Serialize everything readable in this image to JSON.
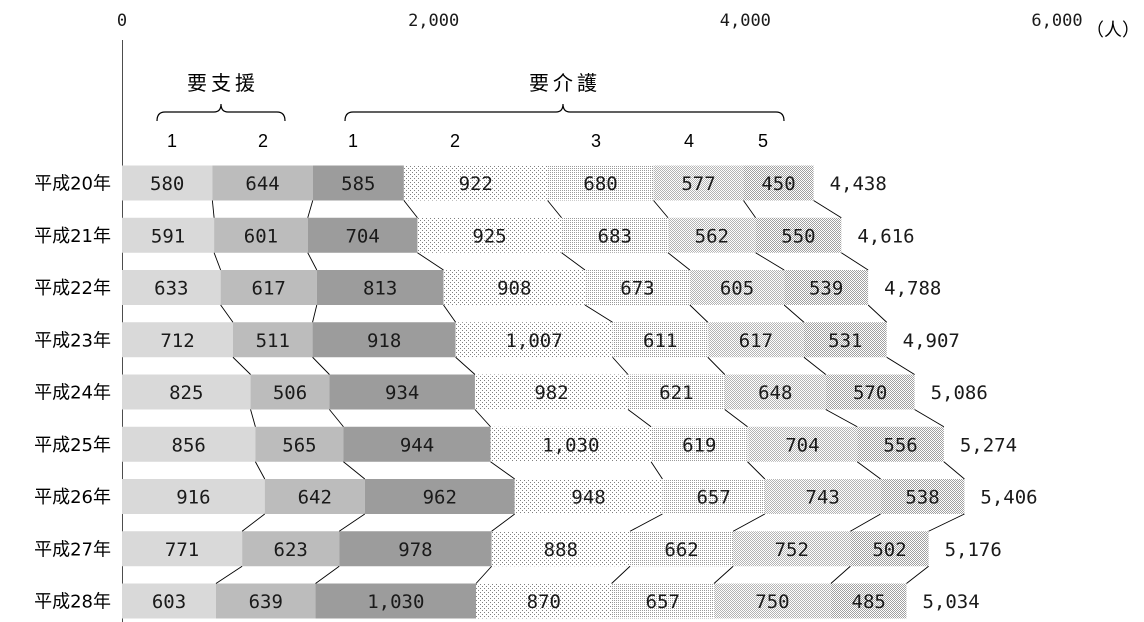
{
  "chart_data": {
    "type": "bar",
    "orientation": "horizontal",
    "stacked": true,
    "series_lines": true,
    "grid": false,
    "xlim": [
      0,
      6000
    ],
    "x_ticks": [
      {
        "value": 0,
        "label": "0"
      },
      {
        "value": 2000,
        "label": "2,000"
      },
      {
        "value": 4000,
        "label": "4,000"
      },
      {
        "value": 6000,
        "label": "6,000"
      }
    ],
    "x_unit": "（人）",
    "categories": [
      "平成20年",
      "平成21年",
      "平成22年",
      "平成23年",
      "平成24年",
      "平成25年",
      "平成26年",
      "平成27年",
      "平成28年"
    ],
    "groups": [
      {
        "label": "要支援",
        "series": [
          0,
          1
        ]
      },
      {
        "label": "要介護",
        "series": [
          2,
          3,
          4,
          5,
          6
        ]
      }
    ],
    "series": [
      {
        "name": "1",
        "color": "#d9d9d9",
        "patterned": false,
        "values": [
          580,
          591,
          633,
          712,
          825,
          856,
          916,
          771,
          603
        ],
        "labels": [
          "580",
          "591",
          "633",
          "712",
          "825",
          "856",
          "916",
          "771",
          "603"
        ]
      },
      {
        "name": "2",
        "color": "#bcbcbc",
        "patterned": false,
        "values": [
          644,
          601,
          617,
          511,
          506,
          565,
          642,
          623,
          639
        ],
        "labels": [
          "644",
          "601",
          "617",
          "511",
          "506",
          "565",
          "642",
          "623",
          "639"
        ]
      },
      {
        "name": "1",
        "color": "#9c9c9c",
        "patterned": false,
        "values": [
          585,
          704,
          813,
          918,
          934,
          944,
          962,
          978,
          1030
        ],
        "labels": [
          "585",
          "704",
          "813",
          "918",
          "934",
          "944",
          "962",
          "978",
          "1,030"
        ]
      },
      {
        "name": "2",
        "color": "#808080",
        "patterned": true,
        "values": [
          922,
          925,
          908,
          1007,
          982,
          1030,
          948,
          888,
          870
        ],
        "labels": [
          "922",
          "925",
          "908",
          "1,007",
          "982",
          "1,030",
          "948",
          "888",
          "870"
        ]
      },
      {
        "name": "3",
        "color": "#9a9a9a",
        "patterned": true,
        "values": [
          680,
          683,
          673,
          611,
          621,
          619,
          657,
          662,
          657
        ],
        "labels": [
          "680",
          "683",
          "673",
          "611",
          "621",
          "619",
          "657",
          "662",
          "657"
        ]
      },
      {
        "name": "4",
        "color": "#b4b4b4",
        "patterned": true,
        "values": [
          577,
          562,
          605,
          617,
          648,
          704,
          743,
          752,
          750
        ],
        "labels": [
          "577",
          "562",
          "605",
          "617",
          "648",
          "704",
          "743",
          "752",
          "750"
        ]
      },
      {
        "name": "5",
        "color": "#a0a0a0",
        "patterned": true,
        "values": [
          450,
          550,
          539,
          531,
          570,
          556,
          538,
          502,
          485
        ],
        "labels": [
          "450",
          "550",
          "539",
          "531",
          "570",
          "556",
          "538",
          "502",
          "485"
        ]
      }
    ],
    "totals": [
      "4,438",
      "4,616",
      "4,788",
      "4,907",
      "5,086",
      "5,274",
      "5,406",
      "5,176",
      "5,034"
    ]
  }
}
